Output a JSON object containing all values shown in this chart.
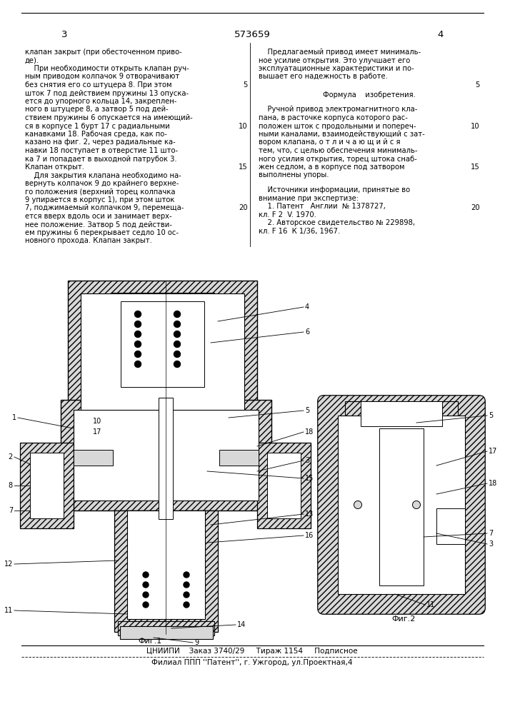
{
  "page_number_left": "3",
  "page_number_center": "573659",
  "page_number_right": "4",
  "col1_text": [
    "клапан закрыт (при обесточенном приво-",
    "де).",
    "    При необходимости открыть клапан руч-",
    "ным приводом колпачок 9 отворачивают",
    "без снятия его со штуцера 8. При этом",
    "шток 7 под действием пружины 13 опуска-",
    "ется до упорного кольца 14, закреплен-",
    "ного в штуцере 8, а затвор 5 под дей-",
    "ствием пружины 6 опускается на имеющий-",
    "ся в корпусе 1 бурт 17 с радиальными",
    "канавками 18. Рабочая среда, как по-",
    "казано на фиг. 2, через радиальные ка-",
    "навки 18 поступает в отверстие 11 што-",
    "ка 7 и попадает в выходной патрубок 3.",
    "Клапан открыт.",
    "    Для закрытия клапана необходимо на-",
    "вернуть колпачок 9 до крайнего верхне-",
    "го положения (верхний торец колпачка",
    "9 упирается в корпус 1), при этом шток",
    "7, поджимаемый колпачком 9, перемеща-",
    "ется вверх вдоль оси и занимает верх-",
    "нее положение. Затвор 5 под действи-",
    "ем пружины 6 перекрывает седло 10 ос-",
    "новного прохода. Клапан закрыт."
  ],
  "col2_text_part1": [
    "    Предлагаемый привод имеет минималь-",
    "ное усилие открытия. Это улучшает его",
    "эксплуатационные характеристики и по-",
    "вышает его надежность в работе."
  ],
  "formula_title": "Формула    изобретения.",
  "formula_text": [
    "    Ручной привод электромагнитного кла-",
    "пана, в расточке корпуса которого рас-",
    "положен шток с продольными и попереч-",
    "ными каналами, взаимодействующий с зат-",
    "вором клапана, о т л и ч а ю щ и й с я",
    "тем, что, с целью обеспечения минималь-",
    "ного усилия открытия, торец штока снаб-",
    "жен седлом, а в корпусе под затвором",
    "выполнены упоры."
  ],
  "sources_title": "    Источники информации, принятые во",
  "sources_text": [
    "внимание при экспертизе:",
    "    1. Патент   Англии  № 1378727,",
    "кл. F 2  V. 1970.",
    "    2. Авторское свидетельство № 229898,",
    "кл. F 16  К 1/36, 1967."
  ],
  "bottom_line1": "ЦНИИПИ    Заказ 3740/29     Тираж 1154     Подписное",
  "bottom_line2": "Филиал ППП ''Патент'', г. Ужгород, ул.Проектная,4",
  "bg_color": "#ffffff",
  "text_color": "#000000",
  "font_size": 7.2,
  "header_font_size": 9.5,
  "label_font_size": 7.0,
  "fig_caption_font_size": 8.0,
  "hatch_color": "#888888",
  "hatch_fc": "#d8d8d8",
  "cross_hatch_fc": "#bbbbbb"
}
